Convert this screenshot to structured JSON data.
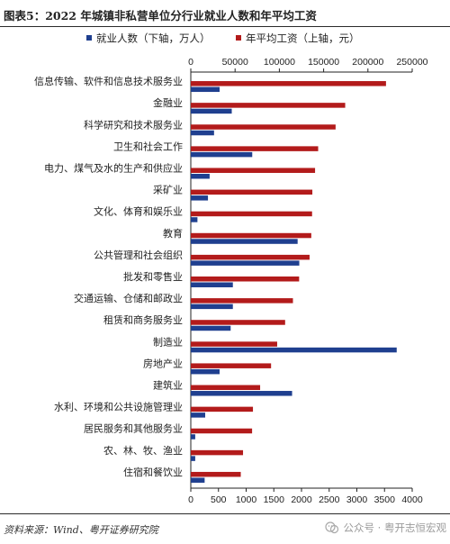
{
  "figure": {
    "label": "图表5：2022 年城镇非私营单位分行业就业人数和年平均工资",
    "source": "资料来源：Wind、粤开证券研究院",
    "watermark": "公众号 · 粤开志恒宏观"
  },
  "chart_data": {
    "type": "bar",
    "orientation": "horizontal",
    "categories": [
      "信息传输、软件和信息技术服务业",
      "金融业",
      "科学研究和技术服务业",
      "卫生和社会工作",
      "电力、煤气及水的生产和供应业",
      "采矿业",
      "文化、体育和娱乐业",
      "教育",
      "公共管理和社会组织",
      "批发和零售业",
      "交通运输、仓储和邮政业",
      "租赁和商务服务业",
      "制造业",
      "房地产业",
      "建筑业",
      "水利、环境和公共设施管理业",
      "居民服务和其他服务业",
      "农、林、牧、渔业",
      "住宿和餐饮业"
    ],
    "series": [
      {
        "name": "就业人数（下轴，万人）",
        "axis": "bottom",
        "color": "#1f3f8f",
        "values": [
          520,
          740,
          420,
          1110,
          340,
          310,
          120,
          1930,
          1960,
          760,
          760,
          720,
          3720,
          520,
          1830,
          260,
          80,
          80,
          250
        ]
      },
      {
        "name": "年平均工资（上轴，元）",
        "axis": "top",
        "color": "#b31b1b",
        "values": [
          220418,
          174341,
          163486,
          143818,
          140320,
          137246,
          136940,
          136043,
          134101,
          122315,
          115345,
          106511,
          97528,
          90640,
          78295,
          70181,
          69209,
          58976,
          56418
        ]
      }
    ],
    "x_top": {
      "range": [
        0,
        250000
      ],
      "ticks": [
        "0",
        "50000",
        "100000",
        "150000",
        "200000",
        "250000"
      ]
    },
    "x_bottom": {
      "range": [
        0,
        4000
      ],
      "ticks": [
        "0",
        "500",
        "1000",
        "1500",
        "2000",
        "2500",
        "3000",
        "3500",
        "4000"
      ]
    },
    "legend": {
      "position": "top",
      "items": [
        "就业人数（下轴，万人）",
        "年平均工资（上轴，元）"
      ]
    },
    "grid": false
  }
}
